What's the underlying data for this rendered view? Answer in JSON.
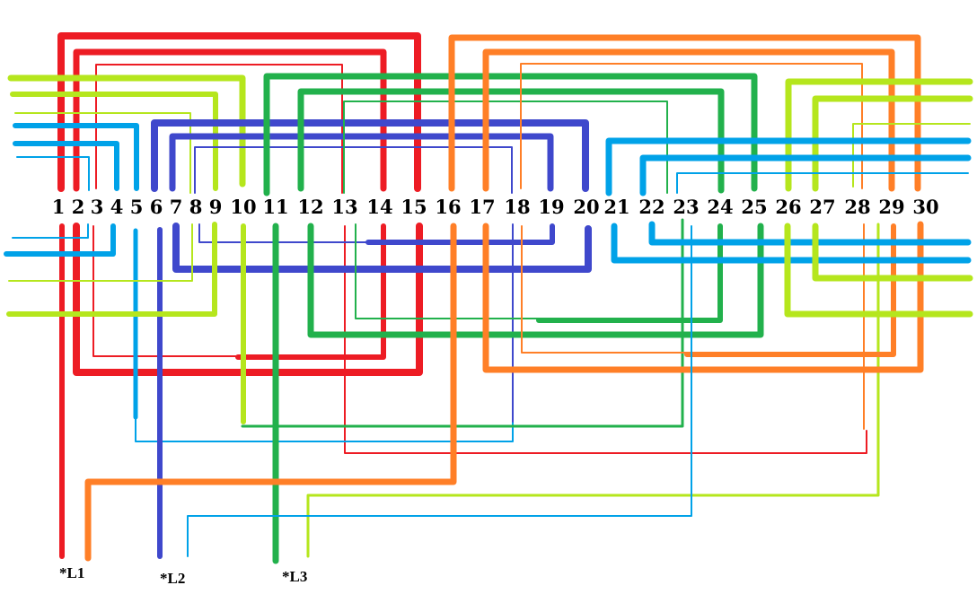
{
  "terminals": [
    "1",
    "2",
    "3",
    "4",
    "5",
    "6",
    "7",
    "8",
    "9",
    "10",
    "11",
    "12",
    "13",
    "14",
    "15",
    "16",
    "17",
    "18",
    "19",
    "20",
    "21",
    "22",
    "23",
    "24",
    "25",
    "26",
    "27",
    "28",
    "29",
    "30"
  ],
  "line_labels": {
    "l1": "*L1",
    "l2": "*L2",
    "l3": "*L3"
  },
  "colors": {
    "red": "#ed1c24",
    "orange": "#ff7f27",
    "lime": "#b5e61d",
    "green": "#22b14c",
    "blue": "#00a2e8",
    "indigo": "#3f48cc"
  }
}
